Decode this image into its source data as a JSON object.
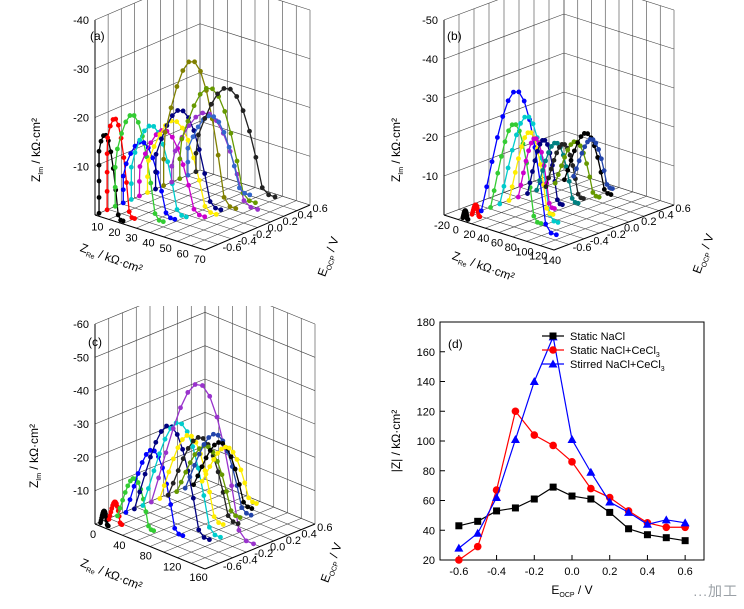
{
  "chart_data": [
    {
      "panel": "(a)",
      "type": "scatter",
      "axes": {
        "x": {
          "label_main": "Z",
          "label_sub": "Re",
          "label_unit": " / kΩ·cm²",
          "ticks": [
            "10",
            "20",
            "30",
            "40",
            "50",
            "60",
            "70"
          ]
        },
        "y": {
          "label_main": "E",
          "label_sub": "OCP",
          "label_unit": " / V",
          "ticks": [
            "0.6",
            "0.4",
            "0.2",
            "0.0",
            "-0.2",
            "-0.4",
            "-0.6"
          ]
        },
        "z": {
          "label_main": "Z",
          "label_sub": "Im",
          "label_unit": " / kΩ·cm²",
          "ticks": [
            "-10",
            "-20",
            "-30",
            "-40"
          ]
        }
      },
      "e_values": [
        -0.6,
        -0.5,
        -0.4,
        -0.3,
        -0.2,
        -0.1,
        0.0,
        0.1,
        0.2,
        0.3,
        0.4,
        0.5,
        0.6
      ],
      "series": [
        {
          "color": "#000000",
          "zre_max": 22,
          "zim_max": 24
        },
        {
          "color": "#ff0000",
          "zre_max": 24,
          "zim_max": 28
        },
        {
          "color": "#33cc33",
          "zre_max": 36,
          "zim_max": 29
        },
        {
          "color": "#0000ff",
          "zre_max": 38,
          "zim_max": 20
        },
        {
          "color": "#00cccc",
          "zre_max": 40,
          "zim_max": 24
        },
        {
          "color": "#cc00cc",
          "zre_max": 46,
          "zim_max": 22
        },
        {
          "color": "#ffee00",
          "zre_max": 48,
          "zim_max": 24
        },
        {
          "color": "#000080",
          "zre_max": 46,
          "zim_max": 26
        },
        {
          "color": "#808000",
          "zre_max": 50,
          "zim_max": 40
        },
        {
          "color": "#9933cc",
          "zre_max": 58,
          "zim_max": 24
        },
        {
          "color": "#669900",
          "zre_max": 52,
          "zim_max": 30
        },
        {
          "color": "#3366cc",
          "zre_max": 44,
          "zim_max": 20
        },
        {
          "color": "#222222",
          "zre_max": 54,
          "zim_max": 28
        }
      ]
    },
    {
      "panel": "(b)",
      "type": "scatter",
      "axes": {
        "x": {
          "label_main": "Z",
          "label_sub": "Re",
          "label_unit": " / kΩ·cm²",
          "ticks": [
            "-20",
            "0",
            "20",
            "40",
            "60",
            "80",
            "100",
            "120",
            "140"
          ]
        },
        "y": {
          "label_main": "E",
          "label_sub": "OCP",
          "label_unit": " / V",
          "ticks": [
            "0.6",
            "0.4",
            "0.2",
            "0.0",
            "-0.2",
            "-0.4",
            "-0.6"
          ]
        },
        "z": {
          "label_main": "Z",
          "label_sub": "Im",
          "label_unit": " / kΩ·cm²",
          "ticks": [
            "-10",
            "-20",
            "-30",
            "-40",
            "-50"
          ]
        }
      },
      "series": [
        {
          "color": "#000000",
          "zre_max": 10,
          "zim_max": 3
        },
        {
          "color": "#ff0000",
          "zre_max": 14,
          "zim_max": 4
        },
        {
          "color": "#0000ff",
          "zre_max": 118,
          "zim_max": 49
        },
        {
          "color": "#33cc33",
          "zre_max": 80,
          "zim_max": 34
        },
        {
          "color": "#00cccc",
          "zre_max": 92,
          "zim_max": 36
        },
        {
          "color": "#ffee00",
          "zre_max": 70,
          "zim_max": 28
        },
        {
          "color": "#cc00cc",
          "zre_max": 58,
          "zim_max": 24
        },
        {
          "color": "#000080",
          "zre_max": 56,
          "zim_max": 22
        },
        {
          "color": "#008080",
          "zre_max": 66,
          "zim_max": 20
        },
        {
          "color": "#222222",
          "zre_max": 60,
          "zim_max": 18
        },
        {
          "color": "#669900",
          "zre_max": 70,
          "zim_max": 18
        },
        {
          "color": "#000000",
          "zre_max": 74,
          "zim_max": 20
        },
        {
          "color": "#2244aa",
          "zre_max": 62,
          "zim_max": 16
        }
      ]
    },
    {
      "panel": "(c)",
      "type": "scatter",
      "axes": {
        "x": {
          "label_main": "Z",
          "label_sub": "Re",
          "label_unit": " / kΩ·cm²",
          "ticks": [
            "0",
            "40",
            "80",
            "120",
            "160"
          ]
        },
        "y": {
          "label_main": "E",
          "label_sub": "OCP",
          "label_unit": " / V",
          "ticks": [
            "0.6",
            "0.4",
            "0.2",
            "0.0",
            "-0.2",
            "-0.4",
            "-0.6"
          ]
        },
        "z": {
          "label_main": "Z",
          "label_sub": "Im",
          "label_unit": " / kΩ·cm²",
          "ticks": [
            "-10",
            "-20",
            "-30",
            "-40",
            "-50",
            "-60"
          ]
        }
      },
      "series": [
        {
          "color": "#000000",
          "zre_max": 14,
          "zim_max": 6
        },
        {
          "color": "#ff0000",
          "zre_max": 22,
          "zim_max": 9
        },
        {
          "color": "#33cc33",
          "zre_max": 58,
          "zim_max": 20
        },
        {
          "color": "#0000ff",
          "zre_max": 90,
          "zim_max": 33
        },
        {
          "color": "#000080",
          "zre_max": 118,
          "zim_max": 44
        },
        {
          "color": "#00cccc",
          "zre_max": 122,
          "zim_max": 44
        },
        {
          "color": "#9933cc",
          "zre_max": 160,
          "zim_max": 62
        },
        {
          "color": "#ffee00",
          "zre_max": 100,
          "zim_max": 34
        },
        {
          "color": "#222222",
          "zre_max": 110,
          "zim_max": 32
        },
        {
          "color": "#669900",
          "zre_max": 100,
          "zim_max": 26
        },
        {
          "color": "#2244aa",
          "zre_max": 104,
          "zim_max": 30
        },
        {
          "color": "#000000",
          "zre_max": 92,
          "zim_max": 24
        },
        {
          "color": "#ffee00",
          "zre_max": 86,
          "zim_max": 20
        }
      ]
    },
    {
      "panel": "(d)",
      "type": "line",
      "xlabel_main": "E",
      "xlabel_sub": "OCP",
      "xlabel_unit": " / V",
      "ylabel": "|Z| / kΩ·cm²",
      "xlim": [
        -0.7,
        0.7
      ],
      "ylim": [
        20,
        180
      ],
      "xticks": [
        "-0.6",
        "-0.4",
        "-0.2",
        "0.0",
        "0.2",
        "0.4",
        "0.6"
      ],
      "yticks": [
        "20",
        "40",
        "60",
        "80",
        "100",
        "120",
        "140",
        "160",
        "180"
      ],
      "x": [
        -0.6,
        -0.5,
        -0.4,
        -0.3,
        -0.2,
        -0.1,
        0.0,
        0.1,
        0.2,
        0.3,
        0.4,
        0.5,
        0.6
      ],
      "legend_position": "top-right",
      "series": [
        {
          "name": "Static NaCl",
          "color": "#000000",
          "marker": "square",
          "values": [
            43,
            46,
            53,
            55,
            61,
            69,
            63,
            61,
            52,
            41,
            37,
            35,
            33
          ]
        },
        {
          "name": "Static NaCl+CeCl",
          "name_sub": "3",
          "color": "#ff0000",
          "marker": "circle",
          "values": [
            20,
            29,
            67,
            120,
            104,
            97,
            86,
            68,
            62,
            53,
            45,
            42,
            42
          ]
        },
        {
          "name": "Stirred NaCl+CeCl",
          "name_sub": "3",
          "color": "#0000ff",
          "marker": "triangle",
          "values": [
            28,
            38,
            62,
            101,
            140,
            170,
            101,
            79,
            59,
            52,
            44,
            47,
            45
          ]
        }
      ]
    }
  ],
  "watermark": "...加工"
}
